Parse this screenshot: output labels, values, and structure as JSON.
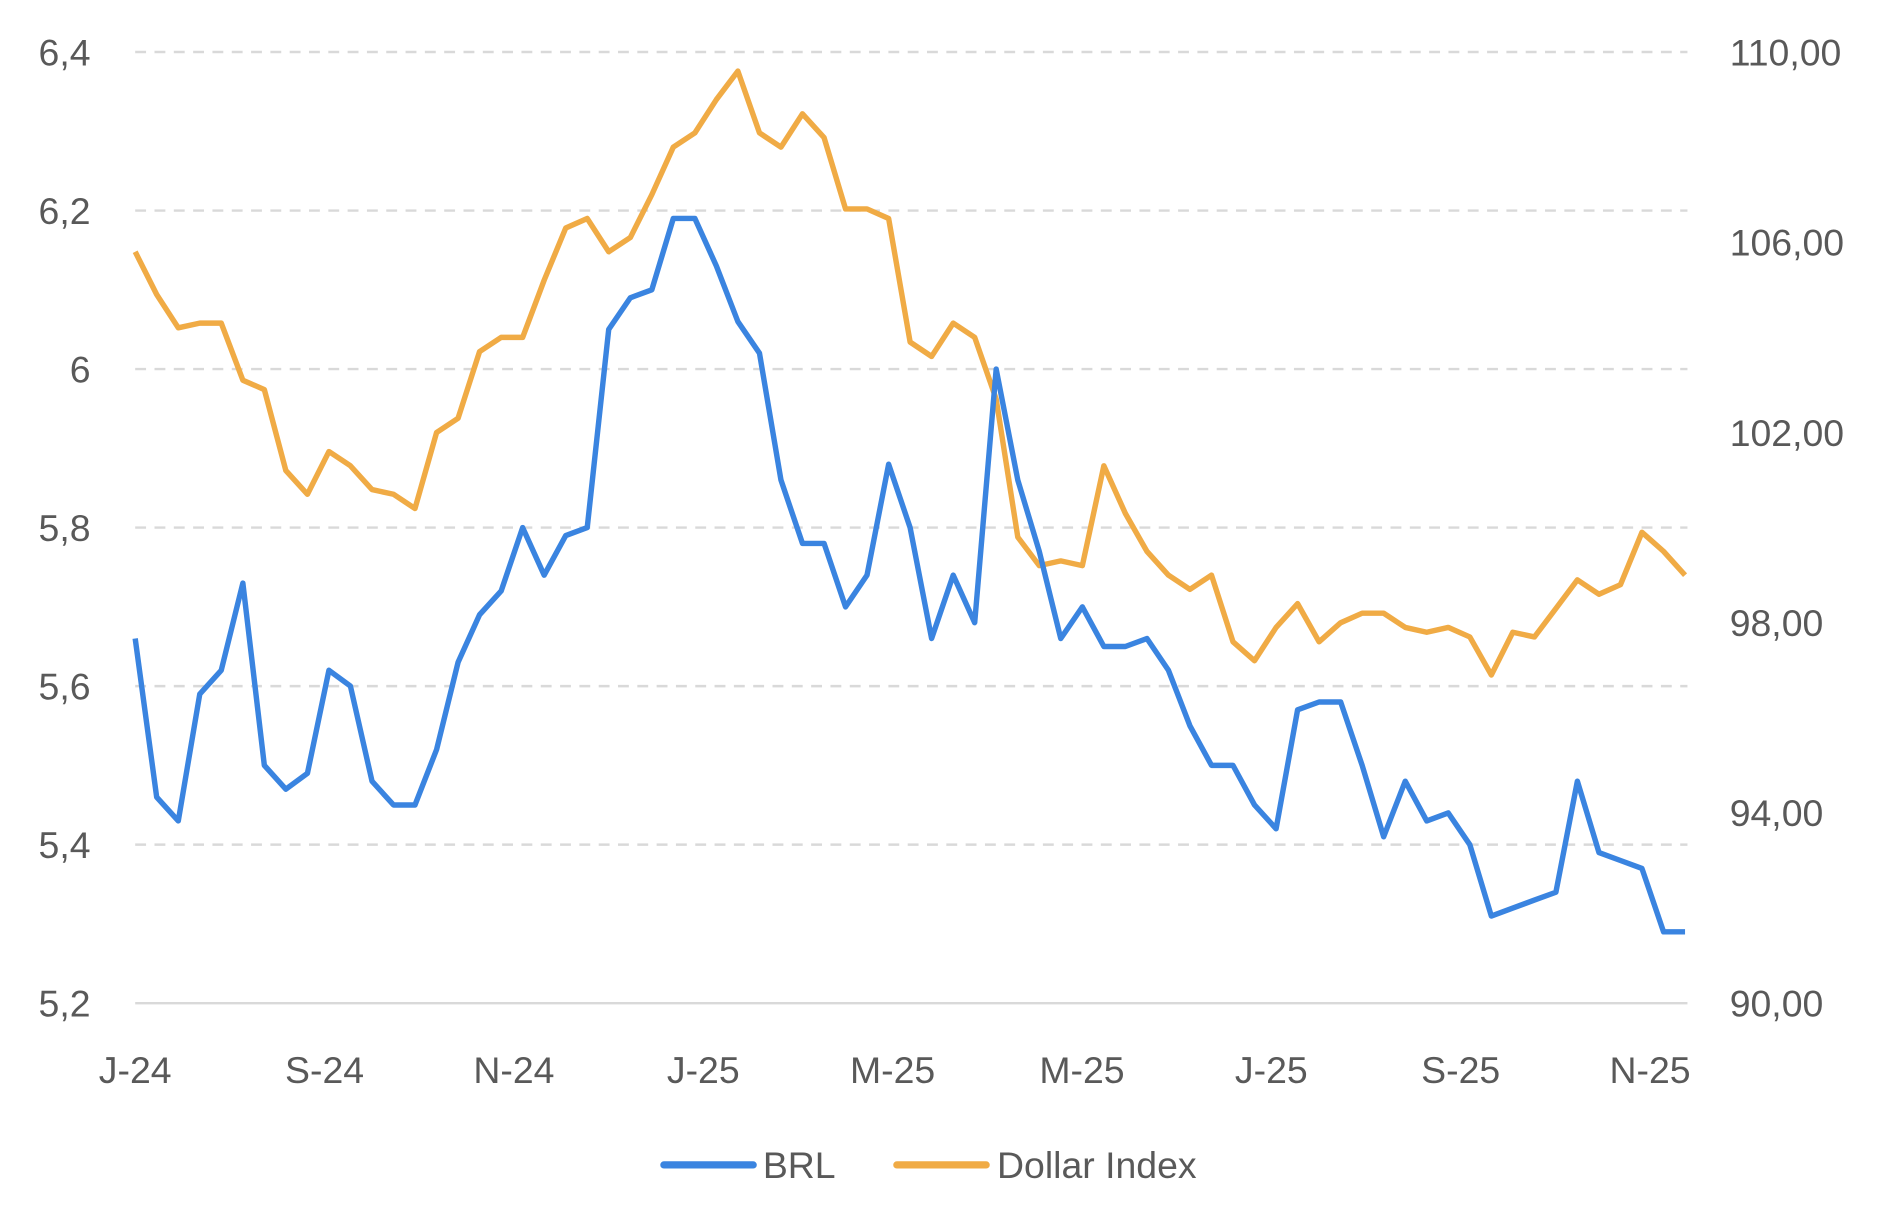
{
  "chart_data": {
    "type": "line",
    "title": "",
    "x_start": "2024-07-01",
    "x_step": "weekly",
    "x_tick_labels": [
      "J-24",
      "S-24",
      "N-24",
      "J-25",
      "M-25",
      "M-25",
      "J-25",
      "S-25",
      "N-25"
    ],
    "y_left": {
      "ticks": [
        "5,2",
        "5,4",
        "5,6",
        "5,8",
        "6",
        "6,2",
        "6,4"
      ],
      "range": [
        5.2,
        6.4
      ]
    },
    "y_right": {
      "ticks": [
        "90,00",
        "94,00",
        "98,00",
        "102,00",
        "106,00",
        "110,00"
      ],
      "range": [
        90,
        110
      ]
    },
    "grid": true,
    "legend_position": "bottom",
    "series": [
      {
        "name": "BRL",
        "axis": "left",
        "color": "#3a84e0",
        "values": [
          5.66,
          5.46,
          5.43,
          5.59,
          5.62,
          5.73,
          5.5,
          5.47,
          5.49,
          5.62,
          5.6,
          5.48,
          5.45,
          5.45,
          5.52,
          5.63,
          5.69,
          5.72,
          5.8,
          5.74,
          5.79,
          5.8,
          6.05,
          6.09,
          6.1,
          6.19,
          6.19,
          6.13,
          6.06,
          6.02,
          5.86,
          5.78,
          5.78,
          5.7,
          5.74,
          5.88,
          5.8,
          5.66,
          5.74,
          5.68,
          6.0,
          5.86,
          5.77,
          5.66,
          5.7,
          5.65,
          5.65,
          5.66,
          5.62,
          5.55,
          5.5,
          5.5,
          5.45,
          5.42,
          5.57,
          5.58,
          5.58,
          5.5,
          5.41,
          5.48,
          5.43,
          5.44,
          5.4,
          5.31,
          5.32,
          5.33,
          5.34,
          5.48,
          5.39,
          5.38,
          5.37,
          5.29,
          5.29
        ]
      },
      {
        "name": "Dollar Index",
        "axis": "right",
        "color": "#f0ab45",
        "values": [
          105.8,
          104.9,
          104.2,
          104.3,
          104.3,
          103.1,
          102.9,
          101.2,
          100.7,
          101.6,
          101.3,
          100.8,
          100.7,
          100.4,
          102.0,
          102.3,
          103.7,
          104.0,
          104.0,
          105.2,
          106.3,
          106.5,
          105.8,
          106.1,
          107.0,
          108.0,
          108.3,
          109.0,
          109.6,
          108.3,
          108.0,
          108.7,
          108.2,
          106.7,
          106.7,
          106.5,
          103.9,
          103.6,
          104.3,
          104.0,
          102.7,
          99.8,
          99.2,
          99.3,
          99.2,
          101.3,
          100.3,
          99.5,
          99.0,
          98.7,
          99.0,
          97.6,
          97.2,
          97.9,
          98.4,
          97.6,
          98.0,
          98.2,
          98.2,
          97.9,
          97.8,
          97.9,
          97.7,
          96.9,
          97.8,
          97.7,
          98.3,
          98.9,
          98.6,
          98.8,
          99.9,
          99.5,
          99.0
        ]
      }
    ]
  }
}
